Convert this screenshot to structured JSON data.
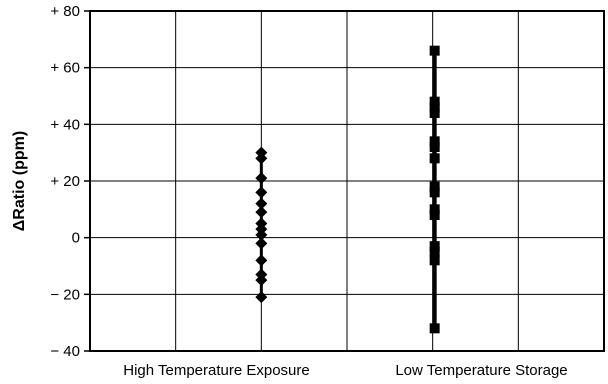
{
  "chart_data": {
    "type": "scatter",
    "ylabel": "ΔRatio (ppm)",
    "ylim": [
      -40,
      80
    ],
    "yticks": [
      -40,
      -20,
      0,
      20,
      40,
      60,
      80
    ],
    "ytick_labels": [
      "− 40",
      "− 20",
      "0",
      "+ 20",
      "+ 40",
      "+ 60",
      "+ 80"
    ],
    "categories": [
      "High Temperature Exposure",
      "Low Temperature Storage"
    ],
    "grid": true,
    "series": [
      {
        "category": "High Temperature Exposure",
        "marker": "diamond",
        "range": [
          -21,
          30
        ],
        "values": [
          30,
          28,
          21,
          16,
          12,
          9,
          5,
          3,
          1,
          -2,
          -8,
          -13,
          -15,
          -21
        ]
      },
      {
        "category": "Low Temperature Storage",
        "marker": "square",
        "range": [
          -32,
          66
        ],
        "values": [
          66,
          48,
          46,
          44,
          34,
          32,
          28,
          18,
          16,
          10,
          8,
          -3,
          -5,
          -8,
          -32
        ]
      }
    ]
  }
}
